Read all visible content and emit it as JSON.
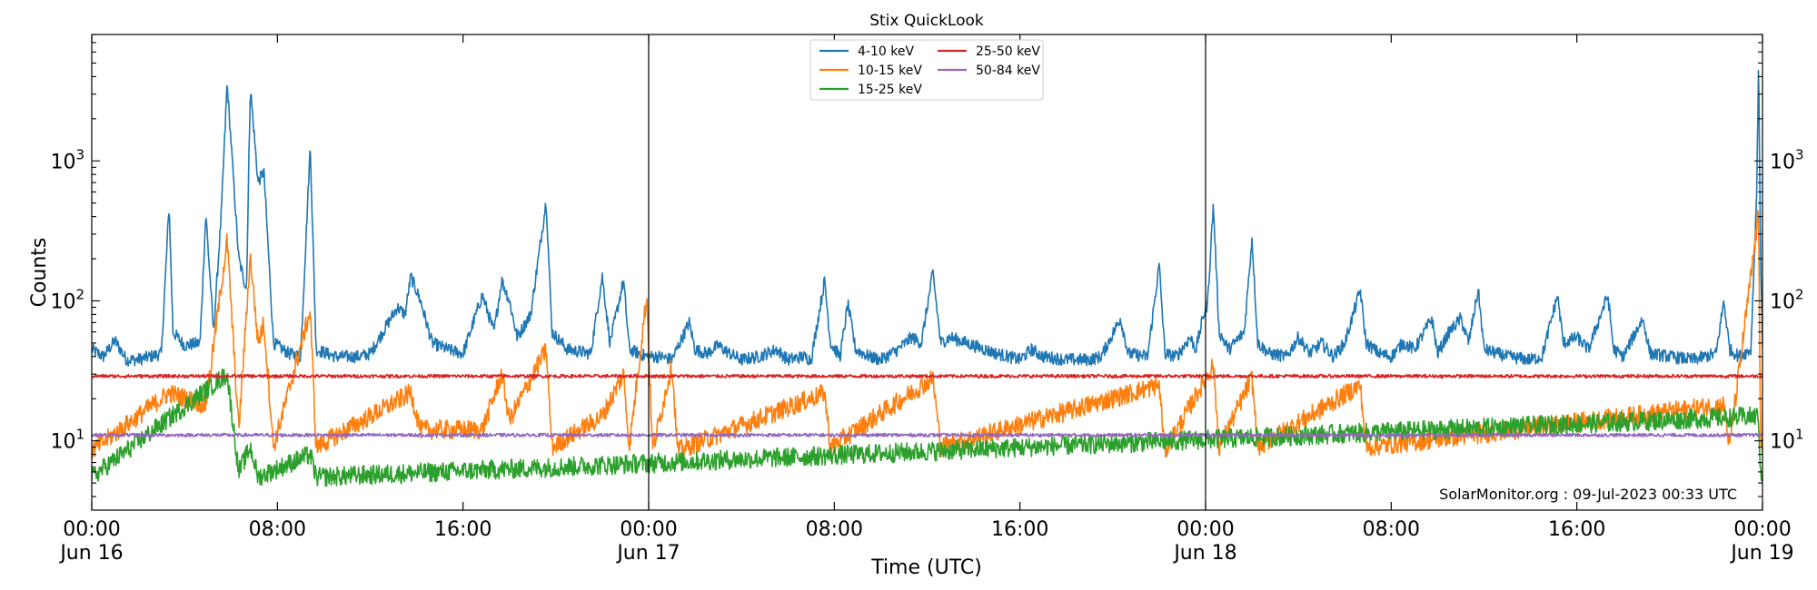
{
  "chart_data": {
    "type": "line",
    "title": "Stix QuickLook",
    "xlabel": "Time (UTC)",
    "ylabel": "Counts",
    "y_scale": "log",
    "ylim": [
      3.2,
      8000
    ],
    "xlim": [
      "2023-06-16 00:00",
      "2023-06-19 00:00"
    ],
    "x_ticks": [
      {
        "value": "2023-06-16 00:00",
        "label": "00:00",
        "sublabel": "Jun 16"
      },
      {
        "value": "2023-06-16 08:00",
        "label": "08:00",
        "sublabel": ""
      },
      {
        "value": "2023-06-16 16:00",
        "label": "16:00",
        "sublabel": ""
      },
      {
        "value": "2023-06-17 00:00",
        "label": "00:00",
        "sublabel": "Jun 17"
      },
      {
        "value": "2023-06-17 08:00",
        "label": "08:00",
        "sublabel": ""
      },
      {
        "value": "2023-06-17 16:00",
        "label": "16:00",
        "sublabel": ""
      },
      {
        "value": "2023-06-18 00:00",
        "label": "00:00",
        "sublabel": "Jun 18"
      },
      {
        "value": "2023-06-18 08:00",
        "label": "08:00",
        "sublabel": ""
      },
      {
        "value": "2023-06-18 16:00",
        "label": "16:00",
        "sublabel": ""
      },
      {
        "value": "2023-06-19 00:00",
        "label": "00:00",
        "sublabel": "Jun 19"
      }
    ],
    "y_ticks": [
      {
        "value": 10,
        "base": "10",
        "exp": "1"
      },
      {
        "value": 100,
        "base": "10",
        "exp": "2"
      },
      {
        "value": 1000,
        "base": "10",
        "exp": "3"
      }
    ],
    "day_dividers": [
      "2023-06-17 00:00",
      "2023-06-18 00:00"
    ],
    "grid": false,
    "legend_position": "top-center",
    "annotation": "SolarMonitor.org : 09-Jul-2023 00:33 UTC",
    "series": [
      {
        "name": "4-10 keV",
        "color": "#1f77b4",
        "baseline": 38,
        "points": [
          [
            "2023-06-16 00:00",
            45
          ],
          [
            "2023-06-16 00:30",
            40
          ],
          [
            "2023-06-16 01:00",
            52
          ],
          [
            "2023-06-16 01:30",
            38
          ],
          [
            "2023-06-16 02:00",
            38
          ],
          [
            "2023-06-16 02:30",
            40
          ],
          [
            "2023-06-16 03:00",
            42
          ],
          [
            "2023-06-16 03:20",
            480
          ],
          [
            "2023-06-16 03:30",
            60
          ],
          [
            "2023-06-16 04:00",
            48
          ],
          [
            "2023-06-16 04:40",
            50
          ],
          [
            "2023-06-16 04:55",
            420
          ],
          [
            "2023-06-16 05:15",
            60
          ],
          [
            "2023-06-16 05:35",
            420
          ],
          [
            "2023-06-16 05:50",
            3600
          ],
          [
            "2023-06-16 06:20",
            200
          ],
          [
            "2023-06-16 06:40",
            120
          ],
          [
            "2023-06-16 06:50",
            3400
          ],
          [
            "2023-06-16 07:10",
            700
          ],
          [
            "2023-06-16 07:25",
            850
          ],
          [
            "2023-06-16 07:50",
            50
          ],
          [
            "2023-06-16 08:30",
            42
          ],
          [
            "2023-06-16 09:00",
            40
          ],
          [
            "2023-06-16 09:25",
            1300
          ],
          [
            "2023-06-16 09:40",
            45
          ],
          [
            "2023-06-16 10:30",
            40
          ],
          [
            "2023-06-16 11:30",
            40
          ],
          [
            "2023-06-16 12:00",
            42
          ],
          [
            "2023-06-16 13:10",
            90
          ],
          [
            "2023-06-16 13:30",
            80
          ],
          [
            "2023-06-16 13:45",
            150
          ],
          [
            "2023-06-16 14:10",
            100
          ],
          [
            "2023-06-16 14:40",
            50
          ],
          [
            "2023-06-16 15:20",
            45
          ],
          [
            "2023-06-16 16:00",
            42
          ],
          [
            "2023-06-16 16:50",
            110
          ],
          [
            "2023-06-16 17:20",
            60
          ],
          [
            "2023-06-16 17:40",
            140
          ],
          [
            "2023-06-16 18:00",
            100
          ],
          [
            "2023-06-16 18:20",
            55
          ],
          [
            "2023-06-16 18:55",
            80
          ],
          [
            "2023-06-16 19:35",
            520
          ],
          [
            "2023-06-16 19:50",
            60
          ],
          [
            "2023-06-16 20:30",
            45
          ],
          [
            "2023-06-16 21:30",
            42
          ],
          [
            "2023-06-16 22:00",
            150
          ],
          [
            "2023-06-16 22:20",
            50
          ],
          [
            "2023-06-16 22:55",
            140
          ],
          [
            "2023-06-16 23:10",
            45
          ],
          [
            "2023-06-16 23:55",
            40
          ],
          [
            "2023-06-17 00:30",
            40
          ],
          [
            "2023-06-17 01:00",
            38
          ],
          [
            "2023-06-17 01:45",
            70
          ],
          [
            "2023-06-17 02:00",
            45
          ],
          [
            "2023-06-17 02:30",
            42
          ],
          [
            "2023-06-17 03:00",
            48
          ],
          [
            "2023-06-17 03:30",
            42
          ],
          [
            "2023-06-17 04:00",
            38
          ],
          [
            "2023-06-17 04:45",
            40
          ],
          [
            "2023-06-17 05:30",
            45
          ],
          [
            "2023-06-17 06:00",
            38
          ],
          [
            "2023-06-17 06:40",
            40
          ],
          [
            "2023-06-17 07:00",
            38
          ],
          [
            "2023-06-17 07:35",
            140
          ],
          [
            "2023-06-17 07:50",
            50
          ],
          [
            "2023-06-17 08:15",
            40
          ],
          [
            "2023-06-17 08:35",
            95
          ],
          [
            "2023-06-17 08:55",
            45
          ],
          [
            "2023-06-17 09:30",
            40
          ],
          [
            "2023-06-17 10:00",
            38
          ],
          [
            "2023-06-17 10:45",
            45
          ],
          [
            "2023-06-17 11:20",
            55
          ],
          [
            "2023-06-17 11:45",
            50
          ],
          [
            "2023-06-17 12:15",
            160
          ],
          [
            "2023-06-17 12:35",
            50
          ],
          [
            "2023-06-17 13:00",
            55
          ],
          [
            "2023-06-17 14:00",
            48
          ],
          [
            "2023-06-17 15:00",
            42
          ],
          [
            "2023-06-17 15:30",
            40
          ],
          [
            "2023-06-17 16:00",
            38
          ],
          [
            "2023-06-17 16:30",
            45
          ],
          [
            "2023-06-17 17:00",
            40
          ],
          [
            "2023-06-17 18:00",
            38
          ],
          [
            "2023-06-17 19:00",
            38
          ],
          [
            "2023-06-17 19:30",
            40
          ],
          [
            "2023-06-17 20:20",
            75
          ],
          [
            "2023-06-17 20:40",
            42
          ],
          [
            "2023-06-17 21:30",
            40
          ],
          [
            "2023-06-17 22:00",
            180
          ],
          [
            "2023-06-17 22:15",
            42
          ],
          [
            "2023-06-17 22:45",
            40
          ],
          [
            "2023-06-17 23:20",
            55
          ],
          [
            "2023-06-17 23:35",
            45
          ],
          [
            "2023-06-17 23:55",
            80
          ],
          [
            "2023-06-18 00:05",
            95
          ],
          [
            "2023-06-18 00:20",
            490
          ],
          [
            "2023-06-18 00:35",
            60
          ],
          [
            "2023-06-18 01:00",
            45
          ],
          [
            "2023-06-18 01:40",
            60
          ],
          [
            "2023-06-18 02:00",
            280
          ],
          [
            "2023-06-18 02:15",
            50
          ],
          [
            "2023-06-18 02:45",
            42
          ],
          [
            "2023-06-18 03:30",
            40
          ],
          [
            "2023-06-18 04:00",
            55
          ],
          [
            "2023-06-18 04:30",
            42
          ],
          [
            "2023-06-18 05:00",
            50
          ],
          [
            "2023-06-18 05:30",
            40
          ],
          [
            "2023-06-18 06:00",
            50
          ],
          [
            "2023-06-18 06:40",
            120
          ],
          [
            "2023-06-18 06:55",
            50
          ],
          [
            "2023-06-18 07:30",
            42
          ],
          [
            "2023-06-18 08:00",
            40
          ],
          [
            "2023-06-18 08:30",
            50
          ],
          [
            "2023-06-18 09:00",
            45
          ],
          [
            "2023-06-18 09:45",
            75
          ],
          [
            "2023-06-18 10:00",
            42
          ],
          [
            "2023-06-18 10:30",
            60
          ],
          [
            "2023-06-18 11:00",
            75
          ],
          [
            "2023-06-18 11:20",
            50
          ],
          [
            "2023-06-18 11:45",
            120
          ],
          [
            "2023-06-18 12:00",
            45
          ],
          [
            "2023-06-18 13:00",
            40
          ],
          [
            "2023-06-18 14:00",
            38
          ],
          [
            "2023-06-18 14:30",
            40
          ],
          [
            "2023-06-18 15:10",
            110
          ],
          [
            "2023-06-18 15:25",
            50
          ],
          [
            "2023-06-18 16:00",
            55
          ],
          [
            "2023-06-18 16:30",
            45
          ],
          [
            "2023-06-18 17:20",
            110
          ],
          [
            "2023-06-18 17:35",
            45
          ],
          [
            "2023-06-18 18:00",
            40
          ],
          [
            "2023-06-18 18:50",
            75
          ],
          [
            "2023-06-18 19:10",
            42
          ],
          [
            "2023-06-18 20:00",
            40
          ],
          [
            "2023-06-18 21:00",
            38
          ],
          [
            "2023-06-18 22:00",
            42
          ],
          [
            "2023-06-18 22:20",
            100
          ],
          [
            "2023-06-18 22:35",
            45
          ],
          [
            "2023-06-18 23:00",
            40
          ],
          [
            "2023-06-18 23:30",
            45
          ],
          [
            "2023-06-18 23:45",
            600
          ],
          [
            "2023-06-18 23:50",
            5500
          ],
          [
            "2023-06-18 23:55",
            200
          ],
          [
            "2023-06-19 00:00",
            50
          ]
        ]
      },
      {
        "name": "10-15 keV",
        "color": "#ff7f0e",
        "baseline": 8.5,
        "points": [
          [
            "2023-06-16 00:00",
            8.5
          ],
          [
            "2023-06-16 03:20",
            22
          ],
          [
            "2023-06-16 04:55",
            18
          ],
          [
            "2023-06-16 05:50",
            270
          ],
          [
            "2023-06-16 06:20",
            12
          ],
          [
            "2023-06-16 06:50",
            210
          ],
          [
            "2023-06-16 07:10",
            50
          ],
          [
            "2023-06-16 07:25",
            70
          ],
          [
            "2023-06-16 07:50",
            9
          ],
          [
            "2023-06-16 09:25",
            85
          ],
          [
            "2023-06-16 09:40",
            9
          ],
          [
            "2023-06-16 13:45",
            22
          ],
          [
            "2023-06-16 14:10",
            12
          ],
          [
            "2023-06-16 16:50",
            12
          ],
          [
            "2023-06-16 17:40",
            30
          ],
          [
            "2023-06-16 18:00",
            14
          ],
          [
            "2023-06-16 19:35",
            45
          ],
          [
            "2023-06-16 19:50",
            9
          ],
          [
            "2023-06-16 22:00",
            15
          ],
          [
            "2023-06-16 22:55",
            30
          ],
          [
            "2023-06-16 23:10",
            9
          ],
          [
            "2023-06-16 23:55",
            110
          ],
          [
            "2023-06-17 00:10",
            8.5
          ],
          [
            "2023-06-17 01:00",
            35
          ],
          [
            "2023-06-17 01:15",
            8.5
          ],
          [
            "2023-06-17 07:35",
            22
          ],
          [
            "2023-06-17 07:50",
            9
          ],
          [
            "2023-06-17 12:15",
            28
          ],
          [
            "2023-06-17 12:35",
            9
          ],
          [
            "2023-06-17 22:00",
            25
          ],
          [
            "2023-06-17 22:15",
            8.5
          ],
          [
            "2023-06-18 00:20",
            35
          ],
          [
            "2023-06-18 00:35",
            9
          ],
          [
            "2023-06-18 02:00",
            28
          ],
          [
            "2023-06-18 02:15",
            9
          ],
          [
            "2023-06-18 06:40",
            25
          ],
          [
            "2023-06-18 06:55",
            9
          ],
          [
            "2023-06-18 22:20",
            18
          ],
          [
            "2023-06-18 22:35",
            9
          ],
          [
            "2023-06-18 23:50",
            420
          ],
          [
            "2023-06-18 23:55",
            12
          ],
          [
            "2023-06-19 00:00",
            8.5
          ]
        ]
      },
      {
        "name": "15-25 keV",
        "color": "#2ca02c",
        "baseline": 5.5,
        "points": [
          [
            "2023-06-16 00:00",
            5.5
          ],
          [
            "2023-06-16 05:50",
            30
          ],
          [
            "2023-06-16 06:20",
            6
          ],
          [
            "2023-06-16 06:50",
            9
          ],
          [
            "2023-06-16 07:10",
            5.5
          ],
          [
            "2023-06-16 09:25",
            8
          ],
          [
            "2023-06-16 09:40",
            5.5
          ],
          [
            "2023-06-18 23:50",
            15
          ],
          [
            "2023-06-18 23:55",
            5.5
          ],
          [
            "2023-06-19 00:00",
            5.5
          ]
        ]
      },
      {
        "name": "25-50 keV",
        "color": "#d62728",
        "baseline": 29,
        "points": [
          [
            "2023-06-16 00:00",
            29
          ],
          [
            "2023-06-19 00:00",
            29
          ]
        ]
      },
      {
        "name": "50-84 keV",
        "color": "#9467bd",
        "baseline": 11,
        "points": [
          [
            "2023-06-16 00:00",
            11
          ],
          [
            "2023-06-19 00:00",
            11
          ]
        ]
      }
    ]
  }
}
